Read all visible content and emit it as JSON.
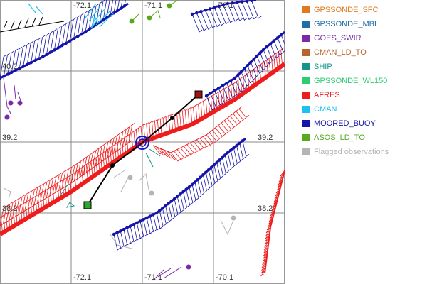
{
  "map": {
    "lon_ticks": [
      "-72.1",
      "-71.1",
      "-70.1"
    ],
    "lat_ticks": [
      "40.2",
      "39.2",
      "38.2"
    ],
    "top_lon_ticks": [
      "-72.1",
      "-71.1",
      "-70.1"
    ],
    "bottom_lon_ticks": [
      "-72.1",
      "-71.1",
      "-70.1"
    ],
    "right_lat_ticks": [
      "39.2",
      "38.2"
    ]
  },
  "legend": {
    "items": [
      {
        "label": "GPSSONDE_SFC",
        "color": "#e07a20"
      },
      {
        "label": "GPSSONDE_MBL",
        "color": "#1e6fa8"
      },
      {
        "label": "GOES_SWIR",
        "color": "#7a2aa8"
      },
      {
        "label": "CMAN_LD_TO",
        "color": "#b8642a"
      },
      {
        "label": "SHIP",
        "color": "#14958a"
      },
      {
        "label": "GPSSONDE_WL150",
        "color": "#2ecc71"
      },
      {
        "label": "AFRES",
        "color": "#ee1c1c"
      },
      {
        "label": "CMAN",
        "color": "#1ec0ef"
      },
      {
        "label": "MOORED_BUOY",
        "color": "#1414a8"
      },
      {
        "label": "ASOS_LD_TO",
        "color": "#5aa81e"
      },
      {
        "label": "Flagged observations",
        "color": "#b4b4b4"
      }
    ]
  }
}
